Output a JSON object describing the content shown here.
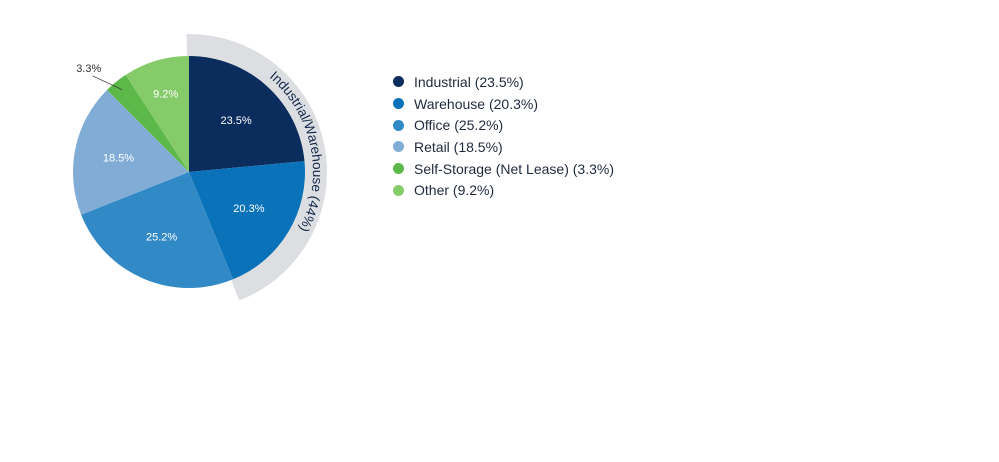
{
  "chart_data": {
    "type": "pie",
    "slices": [
      {
        "label": "Industrial (23.5%)",
        "value": 23.5,
        "value_label": "23.5%",
        "color": "#0b2d5e"
      },
      {
        "label": "Warehouse (20.3%)",
        "value": 20.3,
        "value_label": "20.3%",
        "color": "#0a72b8"
      },
      {
        "label": "Office (25.2%)",
        "value": 25.2,
        "value_label": "25.2%",
        "color": "#3189c6"
      },
      {
        "label": "Retail (18.5%)",
        "value": 18.5,
        "value_label": "18.5%",
        "color": "#81acd6"
      },
      {
        "label": "Self-Storage (Net Lease) (3.3%)",
        "value": 3.3,
        "value_label": "3.3%",
        "color": "#5bb849"
      },
      {
        "label": "Other (9.2%)",
        "value": 9.2,
        "value_label": "9.2%",
        "color": "#86cb6a"
      }
    ],
    "group_annotation": {
      "text": "Industrial/Warehouse (44%)",
      "covers": [
        "Industrial (23.5%)",
        "Warehouse (20.3%)"
      ],
      "color": "#dcdee1"
    },
    "legend_position": "right",
    "start_angle": "12 o'clock, clockwise"
  }
}
